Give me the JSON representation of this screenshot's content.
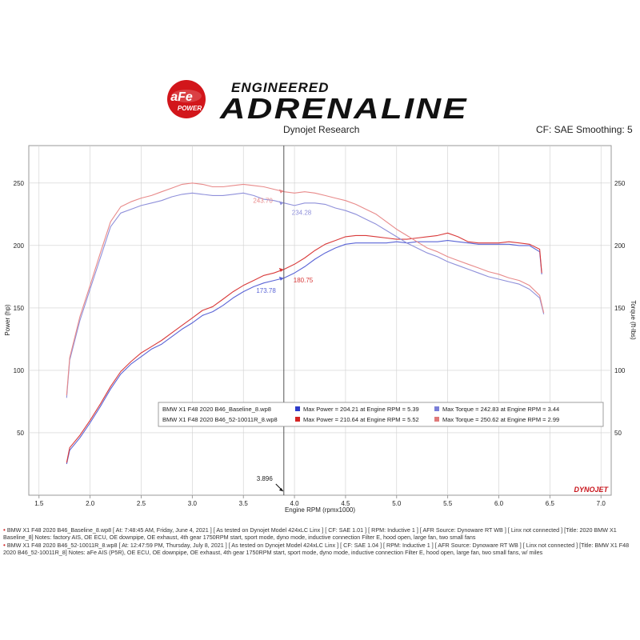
{
  "header": {
    "brand_small": "aFe",
    "brand_sub": "POWER",
    "line1": "ENGINEERED",
    "line2": "ADRENALINE",
    "left_caption": "Dynojet Research",
    "right_caption": "CF: SAE Smoothing: 5"
  },
  "colors": {
    "baseline_power": "#5a64d6",
    "baseline_torque": "#8f90da",
    "afe_power": "#d93a3a",
    "afe_torque": "#e88a8a",
    "grid": "#cfcfcf",
    "cursor": "#555555"
  },
  "chart_data": {
    "type": "line",
    "xlabel": "Engine RPM (rpmx1000)",
    "ylabel": "Power (hp)",
    "y2label": "Torque (ft-lbs)",
    "xlim": [
      1.4,
      7.1
    ],
    "ylim": [
      0,
      280
    ],
    "y2lim": [
      0,
      280
    ],
    "xticks": [
      1.5,
      2.0,
      2.5,
      3.0,
      3.5,
      4.0,
      4.5,
      5.0,
      5.5,
      6.0,
      6.5,
      7.0
    ],
    "xtick_labels": [
      "1.5",
      "2.0",
      "2.5",
      "3.0",
      "3.5",
      "4.0",
      "4.5",
      "5.0",
      "5.5",
      "6.0",
      "6.5",
      "7.0"
    ],
    "yticks": [
      50,
      100,
      150,
      200,
      250
    ],
    "ytick_labels": [
      "50",
      "100",
      "150",
      "200",
      "250"
    ],
    "grid": true,
    "cursor_x": 3.896,
    "cursor_label": "3.896",
    "brand_mark": "DYNOJET",
    "series": [
      {
        "name": "BMW X1 F48 2020 B46_Baseline_8.wp8 Power",
        "axis": "left",
        "color": "#5a64d6",
        "x": [
          1.77,
          1.8,
          1.9,
          2.0,
          2.1,
          2.2,
          2.3,
          2.4,
          2.5,
          2.6,
          2.7,
          2.8,
          2.9,
          3.0,
          3.1,
          3.2,
          3.3,
          3.4,
          3.5,
          3.6,
          3.7,
          3.8,
          3.9,
          4.0,
          4.1,
          4.2,
          4.3,
          4.4,
          4.5,
          4.6,
          4.7,
          4.8,
          4.9,
          5.0,
          5.1,
          5.2,
          5.3,
          5.4,
          5.5,
          5.6,
          5.7,
          5.8,
          5.9,
          6.0,
          6.1,
          6.2,
          6.3,
          6.4,
          6.42
        ],
        "y": [
          25,
          36,
          46,
          58,
          71,
          85,
          97,
          105,
          111,
          117,
          121,
          127,
          133,
          138,
          144,
          147,
          152,
          158,
          163,
          167,
          170,
          172,
          174,
          178,
          183,
          189,
          194,
          198,
          201,
          202,
          202,
          202,
          202,
          203,
          202,
          203,
          203,
          203,
          204,
          203,
          202,
          201,
          201,
          201,
          201,
          200,
          200,
          195,
          177
        ]
      },
      {
        "name": "BMW X1 F48 2020 B46_52-10011R_8.wp8 Power",
        "axis": "left",
        "color": "#d93a3a",
        "x": [
          1.77,
          1.8,
          1.9,
          2.0,
          2.1,
          2.2,
          2.3,
          2.4,
          2.5,
          2.6,
          2.7,
          2.8,
          2.9,
          3.0,
          3.1,
          3.2,
          3.3,
          3.4,
          3.5,
          3.6,
          3.7,
          3.8,
          3.9,
          4.0,
          4.1,
          4.2,
          4.3,
          4.4,
          4.5,
          4.6,
          4.7,
          4.8,
          4.9,
          5.0,
          5.1,
          5.2,
          5.3,
          5.4,
          5.5,
          5.6,
          5.7,
          5.8,
          5.9,
          6.0,
          6.1,
          6.2,
          6.3,
          6.4,
          6.42
        ],
        "y": [
          26,
          38,
          48,
          60,
          73,
          87,
          99,
          107,
          114,
          119,
          124,
          130,
          136,
          142,
          148,
          151,
          157,
          163,
          168,
          172,
          176,
          178,
          181,
          185,
          190,
          196,
          201,
          204,
          207,
          208,
          208,
          207,
          206,
          205,
          205,
          206,
          207,
          208,
          210,
          207,
          203,
          202,
          202,
          202,
          203,
          202,
          201,
          197,
          178
        ]
      },
      {
        "name": "BMW X1 F48 2020 B46_Baseline_8.wp8 Torque",
        "axis": "right",
        "color": "#8f90da",
        "x": [
          1.77,
          1.8,
          1.9,
          2.0,
          2.1,
          2.2,
          2.3,
          2.4,
          2.5,
          2.6,
          2.7,
          2.8,
          2.9,
          3.0,
          3.1,
          3.2,
          3.3,
          3.4,
          3.5,
          3.6,
          3.7,
          3.8,
          3.9,
          4.0,
          4.1,
          4.2,
          4.3,
          4.4,
          4.5,
          4.6,
          4.7,
          4.8,
          4.9,
          5.0,
          5.1,
          5.2,
          5.3,
          5.4,
          5.5,
          5.6,
          5.7,
          5.8,
          5.9,
          6.0,
          6.1,
          6.2,
          6.3,
          6.4,
          6.44
        ],
        "y": [
          78,
          108,
          140,
          165,
          190,
          215,
          226,
          229,
          232,
          234,
          236,
          239,
          241,
          242,
          241,
          240,
          240,
          241,
          242,
          240,
          237,
          236,
          234,
          232,
          234,
          234,
          233,
          230,
          228,
          225,
          221,
          217,
          212,
          207,
          202,
          198,
          194,
          191,
          187,
          184,
          181,
          178,
          175,
          173,
          171,
          169,
          165,
          158,
          145
        ]
      },
      {
        "name": "BMW X1 F48 2020 B46_52-10011R_8.wp8 Torque",
        "axis": "right",
        "color": "#e88a8a",
        "x": [
          1.77,
          1.8,
          1.9,
          2.0,
          2.1,
          2.2,
          2.3,
          2.4,
          2.5,
          2.6,
          2.7,
          2.8,
          2.9,
          3.0,
          3.1,
          3.2,
          3.3,
          3.4,
          3.5,
          3.6,
          3.7,
          3.8,
          3.9,
          4.0,
          4.1,
          4.2,
          4.3,
          4.4,
          4.5,
          4.6,
          4.7,
          4.8,
          4.9,
          5.0,
          5.1,
          5.2,
          5.3,
          5.4,
          5.5,
          5.6,
          5.7,
          5.8,
          5.9,
          6.0,
          6.1,
          6.2,
          6.3,
          6.4,
          6.44
        ],
        "y": [
          80,
          110,
          143,
          168,
          194,
          219,
          231,
          235,
          238,
          240,
          243,
          246,
          249,
          250,
          249,
          247,
          247,
          248,
          249,
          248,
          247,
          245,
          243,
          242,
          243,
          242,
          240,
          238,
          236,
          233,
          229,
          225,
          219,
          213,
          208,
          203,
          198,
          195,
          191,
          188,
          185,
          182,
          179,
          177,
          174,
          172,
          168,
          160,
          146
        ]
      }
    ],
    "markers": [
      {
        "series": 0,
        "x": 3.896,
        "y": 173.78,
        "label": "173.78"
      },
      {
        "series": 1,
        "x": 3.896,
        "y": 180.75,
        "label": "180.75"
      },
      {
        "series": 2,
        "x": 3.896,
        "y": 234.28,
        "label": "234.28"
      },
      {
        "series": 3,
        "x": 3.896,
        "y": 243.7,
        "label": "243.70"
      }
    ],
    "legend": {
      "placement": "center",
      "rows": [
        {
          "file": "BMW X1 F48 2020 B46_Baseline_8.wp8",
          "power": "Max Power = 204.21 at Engine RPM = 5.39",
          "torque": "Max Torque = 242.83 at Engine RPM = 3.44",
          "power_color": "#2e3cc9",
          "torque_color": "#7b7fd8"
        },
        {
          "file": "BMW X1 F48 2020 B46_52-10011R_8.wp8",
          "power": "Max Power = 210.64 at Engine RPM = 5.52",
          "torque": "Max Torque = 250.62 at Engine RPM = 2.99",
          "power_color": "#d42323",
          "torque_color": "#e07a7a"
        }
      ]
    }
  },
  "notes": [
    "BMW X1 F48 2020 B46_Baseline_8.wp8 [ At: 7:48:45 AM, Friday, June 4, 2021 ] [ As tested on Dynojet Model 424xLC Linx ] [ CF: SAE 1.01 ] [ RPM: Inductive 1 ] [ AFR Source: Dynoware RT WB ] [ Linx not connected ] [Title: 2020 BMW X1 Baseline_8] Notes: factory AIS, OE ECU, OE downpipe, OE exhaust, 4th gear 1750RPM start, sport mode, dyno mode, inductive connection Filter E, hood open, large fan, two small fans",
    "BMW X1 F48 2020 B46_52-10011R_8.wp8 [ At: 12:47:59 PM, Thursday, July 8, 2021 ] [ As tested on Dynojet Model 424xLC Linx ] [ CF: SAE 1.04 ] [ RPM: Inductive 1 ] [ AFR Source: Dynoware RT WB ] [ Linx not connected ] [Title: BMW X1 F48 2020 B46_52-10011R_8] Notes: aFe AIS (P5R), OE ECU, OE downpipe, OE exhaust, 4th gear 1750RPM start, sport mode, dyno mode, inductive connection Filter E, hood open, large fan, two small fans, w/ miles"
  ]
}
